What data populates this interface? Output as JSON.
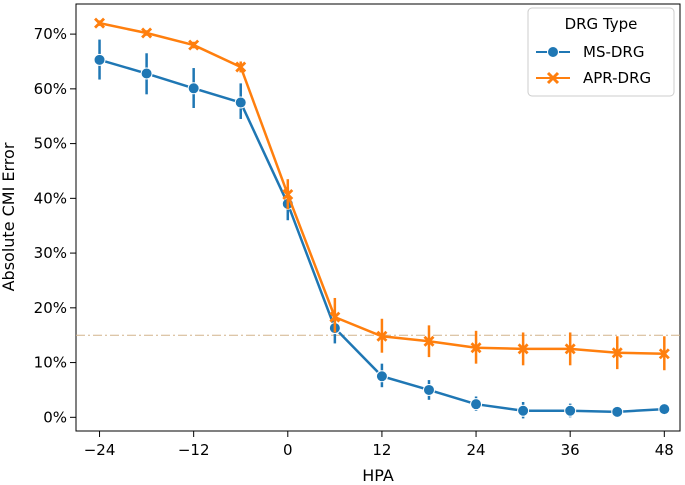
{
  "chart_data": {
    "type": "line",
    "xlabel": "HPA",
    "ylabel": "Absolute CMI Error",
    "x_ticks": [
      "−24",
      "−12",
      "0",
      "12",
      "24",
      "36",
      "48"
    ],
    "y_ticks": [
      "0%",
      "10%",
      "20%",
      "30%",
      "40%",
      "50%",
      "60%",
      "70%"
    ],
    "xlim": [
      -27,
      50
    ],
    "ylim": [
      -2.5,
      75.5
    ],
    "grid": false,
    "reference_line": {
      "y": 15,
      "color": "#d2b48c",
      "style": "dash-dot"
    },
    "legend": {
      "title": "DRG Type",
      "placement": "top-right"
    },
    "x": [
      -24,
      -18,
      -12,
      -6,
      0,
      6,
      12,
      18,
      24,
      30,
      36,
      42,
      48
    ],
    "series": [
      {
        "name": "MS-DRG",
        "color": "#1f77b4",
        "marker": "circle",
        "values": [
          65.3,
          62.8,
          60.1,
          57.5,
          39.0,
          16.3,
          7.5,
          5.0,
          2.4,
          1.2,
          1.2,
          1.0,
          1.5
        ],
        "ci_low": [
          61.7,
          59.0,
          56.5,
          54.5,
          36.0,
          13.5,
          5.5,
          3.2,
          1.2,
          -0.2,
          0.0,
          0.3,
          1.0
        ],
        "ci_high": [
          69.0,
          66.5,
          63.8,
          61.0,
          42.0,
          19.0,
          9.8,
          6.8,
          3.8,
          2.8,
          2.5,
          1.8,
          2.0
        ]
      },
      {
        "name": "APR-DRG",
        "color": "#ff7f0e",
        "marker": "x",
        "values": [
          72.0,
          70.2,
          68.0,
          64.0,
          40.7,
          18.3,
          14.8,
          13.9,
          12.7,
          12.5,
          12.5,
          11.8,
          11.6
        ],
        "ci_low": [
          71.5,
          69.7,
          67.4,
          63.0,
          38.0,
          15.5,
          11.8,
          11.0,
          9.8,
          9.5,
          9.5,
          8.8,
          8.6
        ],
        "ci_high": [
          72.5,
          70.7,
          68.6,
          65.0,
          43.5,
          21.8,
          18.0,
          16.8,
          15.8,
          15.5,
          15.5,
          14.8,
          14.8
        ]
      }
    ]
  }
}
